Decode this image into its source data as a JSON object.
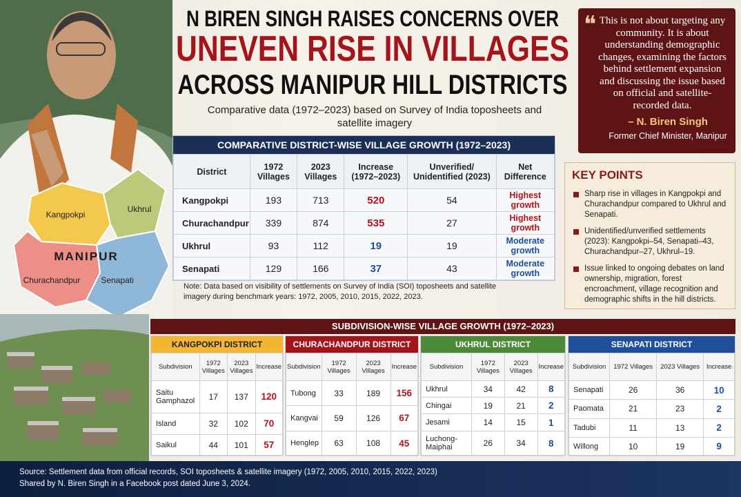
{
  "title": {
    "line1": "N BIREN SINGH RAISES CONCERNS OVER",
    "line2": "UNEVEN RISE IN VILLAGES",
    "line3": "ACROSS MANIPUR HILL DISTRICTS"
  },
  "subtitle": "Comparative data (1972–2023) based on Survey of India toposheets and satellite imagery",
  "quote": {
    "text": "This is not about targeting any community. It is about understanding demographic changes, examining the factors behind settlement expansion and discussing the issue based on official and satellite-recorded data.",
    "author": "– N. Biren Singh",
    "role": "Former Chief Minister, Manipur"
  },
  "map": {
    "label": "MANIPUR",
    "regions": [
      "Kangpokpi",
      "Ukhrul",
      "Churachandpur",
      "Senapati"
    ]
  },
  "district_table": {
    "title": "COMPARATIVE DISTRICT-WISE VILLAGE GROWTH (1972–2023)",
    "header": [
      "District",
      "1972 Villages",
      "2023 Villages",
      "Increase (1972–2023)",
      "Unverified/ Unidentified (2023)",
      "Net Difference"
    ],
    "rows": [
      [
        "Kangpokpi",
        193,
        713,
        520,
        54,
        "Highest growth"
      ],
      [
        "Churachandpur",
        339,
        874,
        535,
        27,
        "Highest growth"
      ],
      [
        "Ukhrul",
        93,
        112,
        19,
        19,
        "Moderate growth"
      ],
      [
        "Senapati",
        129,
        166,
        37,
        43,
        "Moderate growth"
      ]
    ],
    "note": "Note: Data based on visibility of settlements on Survey of India (SOI) toposheets and satellite imagery during benchmark years: 1972, 2005, 2010, 2015, 2022, 2023."
  },
  "key_points": {
    "title": "KEY POINTS",
    "items": [
      "Sharp rise in villages in Kangpokpi and Churachandpur compared to Ukhrul and Senapati.",
      "Unidentified/unverified settlements (2023): Kangpokpi–54, Senapati–43, Churachandpur–27, Ukhrul–19.",
      "Issue linked to ongoing debates on land ownership, migration, forest encroachment, village recognition and demographic shifts in the hill districts."
    ]
  },
  "subdivision": {
    "title": "SUBDIVISION-WISE VILLAGE GROWTH (1972–2023)",
    "districts": [
      {
        "name": "KANGPOKPI DISTRICT",
        "header": [
          "Subdivision",
          "1972 Villages",
          "2023 Villages",
          "Increase"
        ],
        "rows": [
          [
            "Saitu Gamphazol",
            17,
            137,
            120
          ],
          [
            "Island",
            32,
            102,
            70
          ],
          [
            "Saikul",
            44,
            101,
            57
          ]
        ]
      },
      {
        "name": "CHURACHANDPUR DISTRICT",
        "header": [
          "Subdivision",
          "1972 Villages",
          "2023 Villages",
          "Increase"
        ],
        "rows": [
          [
            "Tubong",
            33,
            189,
            156
          ],
          [
            "Kangvai",
            59,
            126,
            67
          ],
          [
            "Henglep",
            63,
            108,
            45
          ]
        ]
      },
      {
        "name": "UKHRUL DISTRICT",
        "header": [
          "Subdivision",
          "1972 Villages",
          "2023 Villages",
          "Increase"
        ],
        "rows": [
          [
            "Ukhrul",
            34,
            42,
            8
          ],
          [
            "Chingai",
            19,
            21,
            2
          ],
          [
            "Jesami",
            14,
            15,
            1
          ],
          [
            "Luchong-Maiphai",
            26,
            34,
            8
          ]
        ]
      },
      {
        "name": "SENAPATI DISTRICT",
        "header": [
          "Subdivision",
          "1972 Villages",
          "2023 Villages",
          "Increase"
        ],
        "rows": [
          [
            "Senapati",
            26,
            36,
            10
          ],
          [
            "Paomata",
            21,
            23,
            2
          ],
          [
            "Tadubi",
            11,
            13,
            2
          ],
          [
            "Willong",
            10,
            19,
            9
          ]
        ]
      }
    ]
  },
  "footer": {
    "source": "Source: Settlement data from official records, SOI toposheets & satellite imagery (1972, 2005, 2010, 2015, 2022, 2023)",
    "shared": "Shared by N. Biren Singh in a Facebook post dated June 3, 2024."
  }
}
